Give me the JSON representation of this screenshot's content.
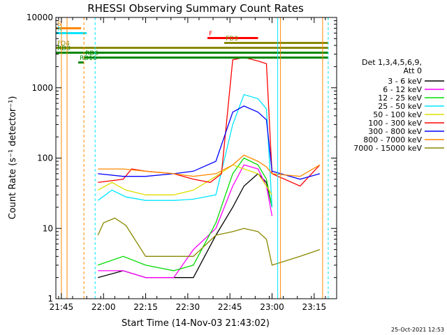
{
  "chart_data": {
    "type": "line",
    "title": "RHESSI Observing Summary Count Rates",
    "xlabel": "Start Time (14-Nov-03 21:43:02)",
    "ylabel": "Count Rate (s⁻¹ detector⁻¹)",
    "yscale": "log",
    "xlim": [
      "21:43:02",
      "23:23:00"
    ],
    "ylim": [
      1,
      10000
    ],
    "x_ticks": [
      "21:45",
      "22:00",
      "22:15",
      "22:30",
      "22:45",
      "23:00",
      "23:15"
    ],
    "y_ticks": [
      "1",
      "10",
      "100",
      "1000",
      "10000"
    ],
    "legend_header": [
      "Det 1,3,4,5,6,9,",
      "Att 0"
    ],
    "legend_placement": "right",
    "footer_date": "25-Oct-2021 12:53",
    "series": [
      {
        "name": "3 - 6 keV",
        "color": "#000000",
        "x": [
          "21:58",
          "22:07",
          "22:15",
          "22:25",
          "22:32",
          "22:40",
          "22:46",
          "22:50",
          "22:55",
          "22:58",
          "23:00"
        ],
        "y": [
          2,
          2.5,
          2,
          2,
          2,
          8,
          20,
          40,
          60,
          45,
          20
        ]
      },
      {
        "name": "6 - 12 keV",
        "color": "#ff00ff",
        "x": [
          "21:58",
          "22:07",
          "22:15",
          "22:25",
          "22:32",
          "22:40",
          "22:46",
          "22:50",
          "22:55",
          "22:58",
          "23:00"
        ],
        "y": [
          2.5,
          2.5,
          2,
          2,
          5,
          10,
          40,
          80,
          70,
          40,
          15
        ]
      },
      {
        "name": "12 - 25 keV",
        "color": "#00dd00",
        "x": [
          "21:58",
          "22:07",
          "22:15",
          "22:25",
          "22:32",
          "22:40",
          "22:46",
          "22:50",
          "22:55",
          "22:58",
          "23:00"
        ],
        "y": [
          3,
          4,
          3,
          2.5,
          3,
          12,
          60,
          100,
          80,
          50,
          20
        ]
      },
      {
        "name": "25 - 50 keV",
        "color": "#00e5ff",
        "x": [
          "21:58",
          "22:03",
          "22:08",
          "22:15",
          "22:25",
          "22:32",
          "22:40",
          "22:46",
          "22:50",
          "22:55",
          "22:58",
          "23:00"
        ],
        "y": [
          25,
          35,
          28,
          25,
          25,
          26,
          30,
          300,
          800,
          700,
          500,
          20
        ]
      },
      {
        "name": "50 - 100 keV",
        "color": "#dddd00",
        "x": [
          "21:58",
          "22:03",
          "22:08",
          "22:15",
          "22:25",
          "22:32",
          "22:40",
          "22:46",
          "22:50",
          "22:55",
          "22:58",
          "23:00"
        ],
        "y": [
          35,
          45,
          35,
          30,
          30,
          35,
          55,
          80,
          70,
          60,
          40,
          30
        ]
      },
      {
        "name": "100 - 300 keV",
        "color": "#ff0000",
        "x": [
          "21:58",
          "22:07",
          "22:10",
          "22:15",
          "22:25",
          "22:32",
          "22:38",
          "22:42",
          "22:46",
          "22:50",
          "22:55",
          "22:58",
          "23:00",
          "23:10",
          "23:17"
        ],
        "y": [
          45,
          50,
          70,
          65,
          60,
          50,
          45,
          60,
          2500,
          2700,
          2400,
          2200,
          60,
          40,
          80
        ]
      },
      {
        "name": "300 - 800 keV",
        "color": "#0000ff",
        "x": [
          "21:58",
          "22:07",
          "22:15",
          "22:25",
          "22:32",
          "22:40",
          "22:46",
          "22:50",
          "22:55",
          "22:58",
          "23:00",
          "23:10",
          "23:17"
        ],
        "y": [
          60,
          55,
          55,
          60,
          65,
          90,
          450,
          550,
          450,
          350,
          65,
          50,
          60
        ]
      },
      {
        "name": "800 - 7000 keV",
        "color": "#ff8800",
        "x": [
          "21:58",
          "22:07",
          "22:15",
          "22:25",
          "22:32",
          "22:40",
          "22:46",
          "22:50",
          "22:55",
          "22:58",
          "23:00",
          "23:10",
          "23:17"
        ],
        "y": [
          70,
          70,
          65,
          60,
          55,
          60,
          80,
          110,
          90,
          75,
          60,
          55,
          80
        ]
      },
      {
        "name": "7000 - 15000 keV",
        "color": "#888800",
        "x": [
          "21:58",
          "22:00",
          "22:04",
          "22:08",
          "22:15",
          "22:25",
          "22:32",
          "22:40",
          "22:46",
          "22:50",
          "22:55",
          "22:58",
          "23:00",
          "23:10",
          "23:17"
        ],
        "y": [
          8,
          12,
          14,
          11,
          4,
          4,
          4,
          8,
          9,
          10,
          9,
          7,
          3,
          4,
          5
        ]
      }
    ],
    "flags": [
      {
        "label": "S",
        "color": "#ff8800",
        "x": [
          "21:43",
          "21:52"
        ]
      },
      {
        "label": "N",
        "color": "#00e5ff",
        "x": [
          "21:43",
          "21:54"
        ]
      },
      {
        "label": "F",
        "color": "#ff0000",
        "x": [
          "22:37",
          "22:55"
        ]
      },
      {
        "label": "FD3",
        "color": "#888800",
        "x": [
          "22:43",
          "23:20"
        ]
      },
      {
        "label": "FD4",
        "color": "#888800",
        "x": [
          "21:43",
          "23:20"
        ]
      },
      {
        "label": "RD0",
        "color": "#008800",
        "x": [
          "21:43",
          "23:20"
        ]
      },
      {
        "label": "RD6",
        "color": "#008800",
        "x": [
          "21:53",
          "23:20"
        ]
      },
      {
        "label": "RD16",
        "color": "#008800",
        "x": [
          "21:51",
          "21:53"
        ]
      }
    ],
    "vertical_markers": [
      {
        "color": "#ff8800",
        "style": "solid",
        "x": "21:45"
      },
      {
        "color": "#ff8800",
        "style": "solid",
        "x": "21:47"
      },
      {
        "color": "#ff8800",
        "style": "dashed",
        "x": "21:53"
      },
      {
        "color": "#00e5ff",
        "style": "dashed",
        "x": "21:57"
      },
      {
        "color": "#00e5ff",
        "style": "solid",
        "x": "23:02"
      },
      {
        "color": "#ff8800",
        "style": "solid",
        "x": "23:03"
      },
      {
        "color": "#ff8800",
        "style": "solid",
        "x": "23:18"
      },
      {
        "color": "#00e5ff",
        "style": "dashed",
        "x": "23:20"
      }
    ]
  }
}
